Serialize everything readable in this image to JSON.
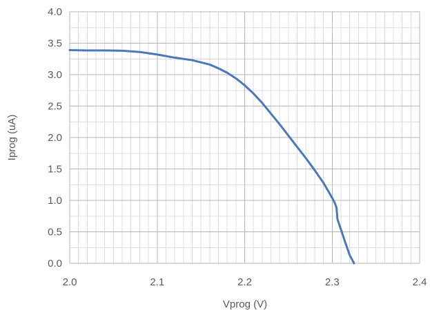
{
  "chart_data": {
    "type": "line",
    "title": "",
    "xlabel": "Vprog (V)",
    "ylabel": "Iprog (uA)",
    "xlim": [
      2.0,
      2.4
    ],
    "ylim": [
      0.0,
      4.0
    ],
    "x_major_ticks": [
      "2.0",
      "2.1",
      "2.2",
      "2.3",
      "2.4"
    ],
    "y_major_ticks": [
      "0.0",
      "0.5",
      "1.0",
      "1.5",
      "2.0",
      "2.5",
      "3.0",
      "3.5",
      "4.0"
    ],
    "x_major_values": [
      2.0,
      2.1,
      2.2,
      2.3,
      2.4
    ],
    "y_major_values": [
      0.0,
      0.5,
      1.0,
      1.5,
      2.0,
      2.5,
      3.0,
      3.5,
      4.0
    ],
    "x_minor_step": 0.01,
    "y_minor_step": 0.25,
    "grid": true,
    "legend": "none",
    "colors": {
      "series": "#4a78b8",
      "major_grid": "#b4b4b4",
      "minor_grid": "#dcdcdc",
      "text": "#595959"
    },
    "series": [
      {
        "x": [
          2.0,
          2.02,
          2.04,
          2.06,
          2.08,
          2.1,
          2.12,
          2.14,
          2.16,
          2.17,
          2.18,
          2.19,
          2.2,
          2.21,
          2.22,
          2.23,
          2.24,
          2.25,
          2.26,
          2.27,
          2.28,
          2.29,
          2.3,
          2.303,
          2.305,
          2.306,
          2.31,
          2.315,
          2.32,
          2.325
        ],
        "y": [
          3.39,
          3.385,
          3.385,
          3.38,
          3.36,
          3.32,
          3.27,
          3.23,
          3.16,
          3.1,
          3.03,
          2.94,
          2.83,
          2.7,
          2.55,
          2.38,
          2.21,
          2.03,
          1.85,
          1.67,
          1.48,
          1.28,
          1.04,
          0.96,
          0.88,
          0.7,
          0.54,
          0.33,
          0.13,
          0.0
        ]
      }
    ]
  }
}
